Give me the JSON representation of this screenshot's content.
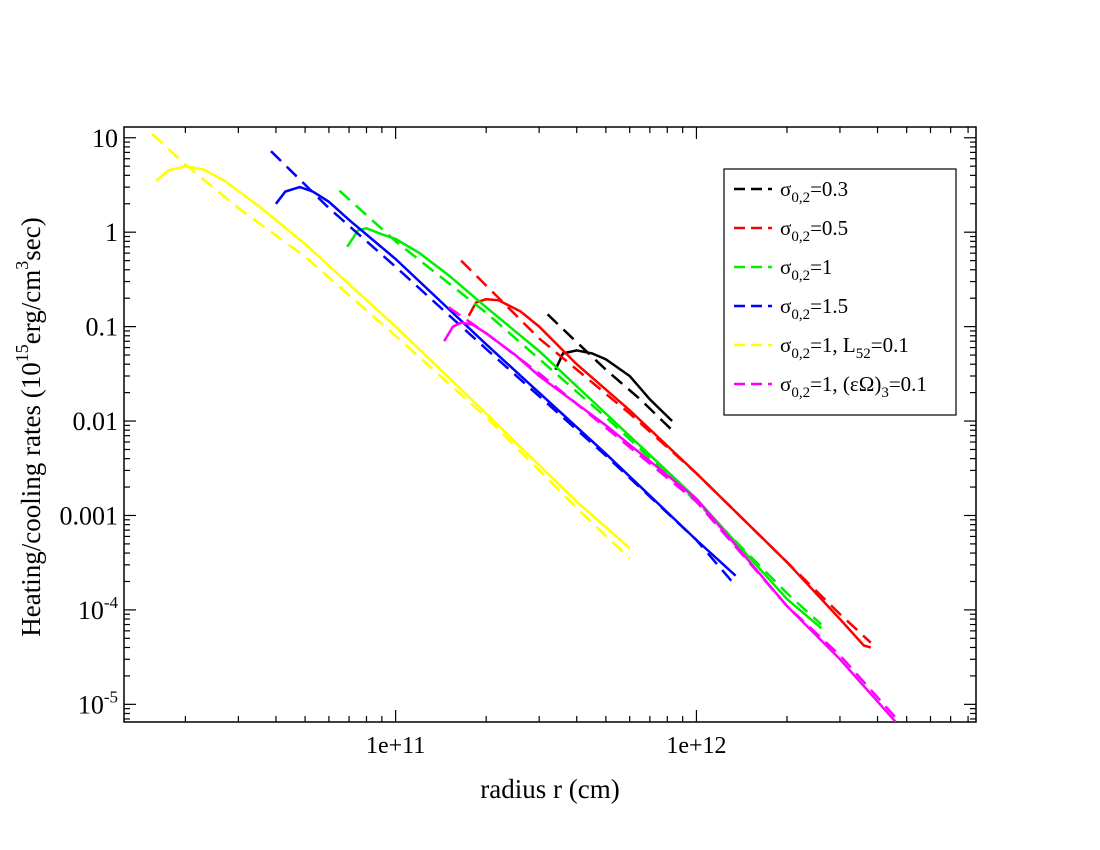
{
  "chart_data": {
    "type": "line",
    "title": "",
    "xlabel": "radius r (cm)",
    "ylabel": {
      "base": "Heating/cooling rates (10",
      "exp": "15",
      "mid": "erg/cm",
      "exp2": "3",
      "tail": "sec)"
    },
    "xscale": "log",
    "yscale": "log",
    "xlim": [
      12500000000.0,
      8500000000000.0
    ],
    "ylim": [
      6.5e-06,
      13
    ],
    "x_ticks": [
      {
        "value": 100000000000.0,
        "label": "1e+11"
      },
      {
        "value": 1000000000000.0,
        "label": "1e+12"
      }
    ],
    "y_ticks": [
      {
        "value": 10,
        "base": "10",
        "exp": ""
      },
      {
        "value": 1,
        "base": "1",
        "exp": ""
      },
      {
        "value": 0.1,
        "base": "0.1",
        "exp": ""
      },
      {
        "value": 0.01,
        "base": "0.01",
        "exp": ""
      },
      {
        "value": 0.001,
        "base": "0.001",
        "exp": ""
      },
      {
        "value": 0.0001,
        "base": "10",
        "exp": "-4"
      },
      {
        "value": 1e-05,
        "base": "10",
        "exp": "-5"
      }
    ],
    "legend_position": "top-right",
    "series": [
      {
        "name": "σ0,2=0.3",
        "legend": {
          "sym": "σ",
          "sub": "0,2",
          "text": "=0.3"
        },
        "color": "#000000",
        "solid": {
          "x": [
            340000000000.0,
            360000000000.0,
            400000000000.0,
            450000000000.0,
            500000000000.0,
            600000000000.0,
            700000000000.0,
            830000000000.0
          ],
          "y": [
            0.035,
            0.052,
            0.056,
            0.052,
            0.045,
            0.03,
            0.017,
            0.01
          ]
        },
        "dashed": {
          "x": [
            320000000000.0,
            380000000000.0,
            500000000000.0,
            650000000000.0,
            830000000000.0
          ],
          "y": [
            0.135,
            0.08,
            0.035,
            0.017,
            0.008
          ]
        }
      },
      {
        "name": "σ0,2=0.5",
        "legend": {
          "sym": "σ",
          "sub": "0,2",
          "text": "=0.5"
        },
        "color": "#ff0000",
        "solid": {
          "x": [
            175000000000.0,
            185000000000.0,
            200000000000.0,
            220000000000.0,
            260000000000.0,
            300000000000.0,
            400000000000.0,
            600000000000.0,
            1000000000000.0,
            2000000000000.0,
            3000000000000.0,
            3600000000000.0,
            3800000000000.0
          ],
          "y": [
            0.13,
            0.18,
            0.195,
            0.19,
            0.145,
            0.1,
            0.04,
            0.013,
            0.0028,
            0.00032,
            8e-05,
            4.2e-05,
            4e-05
          ]
        },
        "dashed": {
          "x": [
            165000000000.0,
            300000000000.0,
            600000000000.0,
            1000000000000.0,
            2000000000000.0,
            3000000000000.0,
            3800000000000.0
          ],
          "y": [
            0.5,
            0.075,
            0.012,
            0.0028,
            0.00032,
            9e-05,
            4.5e-05
          ]
        }
      },
      {
        "name": "σ0,2=1",
        "legend": {
          "sym": "σ",
          "sub": "0,2",
          "text": "=1"
        },
        "color": "#00ee00",
        "solid": {
          "x": [
            69000000000.0,
            75000000000.0,
            80000000000.0,
            90000000000.0,
            100000000000.0,
            120000000000.0,
            150000000000.0,
            200000000000.0,
            300000000000.0,
            500000000000.0,
            1000000000000.0,
            2000000000000.0,
            2600000000000.0
          ],
          "y": [
            0.7,
            1.05,
            1.1,
            0.95,
            0.85,
            0.6,
            0.35,
            0.16,
            0.055,
            0.012,
            0.0015,
            0.00013,
            6.4e-05
          ]
        },
        "dashed": {
          "x": [
            65000000000.0,
            100000000000.0,
            200000000000.0,
            500000000000.0,
            1000000000000.0,
            2000000000000.0,
            2600000000000.0
          ],
          "y": [
            2.75,
            0.8,
            0.14,
            0.011,
            0.0014,
            0.00015,
            7e-05
          ]
        }
      },
      {
        "name": "σ0,2=1.5",
        "legend": {
          "sym": "σ",
          "sub": "0,2",
          "text": "=1.5"
        },
        "color": "#0000ff",
        "solid": {
          "x": [
            40000000000.0,
            43000000000.0,
            48000000000.0,
            53000000000.0,
            60000000000.0,
            70000000000.0,
            100000000000.0,
            200000000000.0,
            500000000000.0,
            1000000000000.0,
            1350000000000.0
          ],
          "y": [
            2,
            2.7,
            3,
            2.7,
            2.1,
            1.35,
            0.52,
            0.065,
            0.0045,
            0.00055,
            0.00023
          ]
        },
        "dashed": {
          "x": [
            38500000000.0,
            60000000000.0,
            100000000000.0,
            200000000000.0,
            500000000000.0,
            1000000000000.0,
            1350000000000.0
          ],
          "y": [
            7.2,
            1.8,
            0.43,
            0.058,
            0.0043,
            0.00055,
            0.00018
          ]
        }
      },
      {
        "name": "σ0,2=1, L52=0.1",
        "legend": {
          "sym": "σ",
          "sub": "0,2",
          "text": "=1, L",
          "sub2": "52",
          "text2": "=0.1"
        },
        "color": "#ffff00",
        "solid": {
          "x": [
            16000000000.0,
            17500000000.0,
            20000000000.0,
            23000000000.0,
            27000000000.0,
            35000000000.0,
            50000000000.0,
            100000000000.0,
            200000000000.0,
            400000000000.0,
            600000000000.0
          ],
          "y": [
            3.5,
            4.5,
            5,
            4.6,
            3.5,
            1.9,
            0.75,
            0.1,
            0.012,
            0.0014,
            0.00045
          ]
        },
        "dashed": {
          "x": [
            15500000000.0,
            20000000000.0,
            30000000000.0,
            50000000000.0,
            100000000000.0,
            200000000000.0,
            400000000000.0,
            600000000000.0
          ],
          "y": [
            11,
            5.2,
            1.8,
            0.55,
            0.08,
            0.011,
            0.0012,
            0.00035
          ]
        }
      },
      {
        "name": "σ0,2=1, (εΩ)3=0.1",
        "legend": {
          "sym": "σ",
          "sub": "0,2",
          "text": "=1, (εΩ)",
          "sub2": "3",
          "text2": "=0.1"
        },
        "color": "#ff00ff",
        "solid": {
          "x": [
            145000000000.0,
            155000000000.0,
            165000000000.0,
            180000000000.0,
            200000000000.0,
            250000000000.0,
            300000000000.0,
            500000000000.0,
            1000000000000.0,
            2000000000000.0,
            3000000000000.0,
            4600000000000.0
          ],
          "y": [
            0.07,
            0.1,
            0.11,
            0.105,
            0.085,
            0.05,
            0.03,
            0.009,
            0.0015,
            0.00011,
            3e-05,
            6.5e-06
          ]
        },
        "dashed": {
          "x": [
            150000000000.0,
            200000000000.0,
            300000000000.0,
            500000000000.0,
            1000000000000.0,
            2000000000000.0,
            3000000000000.0,
            4600000000000.0
          ],
          "y": [
            0.16,
            0.085,
            0.032,
            0.0085,
            0.0014,
            0.00011,
            3.3e-05,
            7.2e-06
          ]
        }
      }
    ]
  }
}
